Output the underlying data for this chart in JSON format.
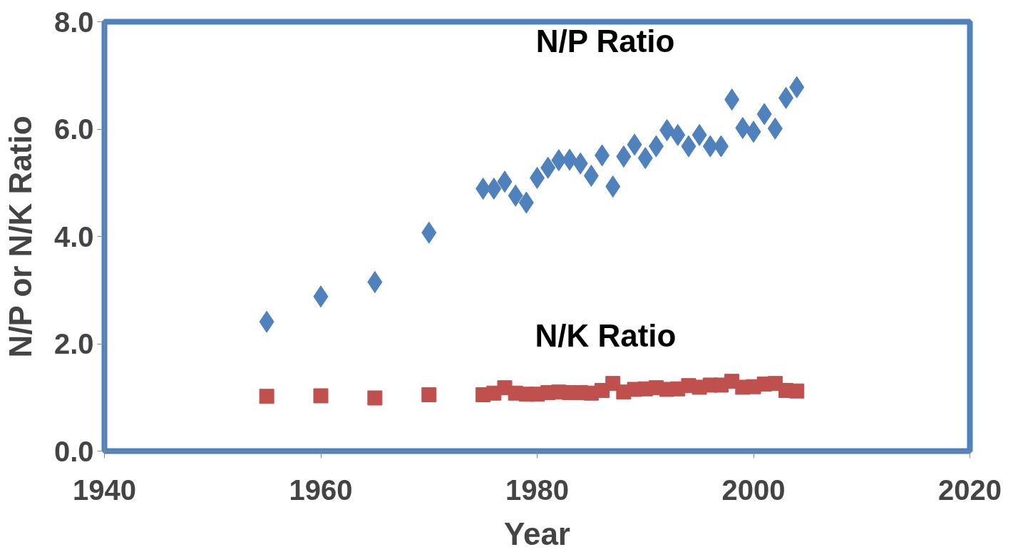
{
  "chart_data": {
    "type": "scatter",
    "xlabel": "Year",
    "ylabel": "N/P or N/K Ratio",
    "x": [
      1955,
      1960,
      1965,
      1970,
      1975,
      1976,
      1977,
      1978,
      1979,
      1980,
      1981,
      1982,
      1983,
      1984,
      1985,
      1986,
      1987,
      1988,
      1989,
      1990,
      1991,
      1992,
      1993,
      1994,
      1995,
      1996,
      1997,
      1998,
      1999,
      2000,
      2001,
      2002,
      2003,
      2004
    ],
    "series": [
      {
        "name": "N/P Ratio",
        "color": "#4f81bd",
        "marker": "diamond",
        "values": [
          2.41,
          2.88,
          3.15,
          4.07,
          4.89,
          4.89,
          5.02,
          4.76,
          4.63,
          5.09,
          5.28,
          5.42,
          5.43,
          5.36,
          5.13,
          5.51,
          4.93,
          5.49,
          5.71,
          5.46,
          5.68,
          5.98,
          5.89,
          5.68,
          5.89,
          5.68,
          5.68,
          6.55,
          6.02,
          5.95,
          6.28,
          6.01,
          6.58,
          6.78
        ]
      },
      {
        "name": "N/K Ratio",
        "color": "#c0504d",
        "marker": "square",
        "values": [
          1.02,
          1.03,
          0.99,
          1.05,
          1.05,
          1.08,
          1.18,
          1.08,
          1.06,
          1.06,
          1.09,
          1.1,
          1.09,
          1.09,
          1.08,
          1.13,
          1.26,
          1.1,
          1.15,
          1.16,
          1.18,
          1.15,
          1.16,
          1.22,
          1.19,
          1.23,
          1.23,
          1.3,
          1.19,
          1.2,
          1.25,
          1.26,
          1.13,
          1.12
        ]
      }
    ],
    "xlim": [
      1940,
      2020
    ],
    "xticks": [
      1940,
      1960,
      1980,
      2000,
      2020
    ],
    "ylim": [
      0,
      8
    ],
    "yticks": [
      {
        "value": 0,
        "label": "0.0"
      },
      {
        "value": 2,
        "label": "2.0"
      },
      {
        "value": 4,
        "label": "4.0"
      },
      {
        "value": 6,
        "label": "6.0"
      },
      {
        "value": 8,
        "label": "8.0"
      }
    ],
    "grid": false,
    "legend": false
  }
}
